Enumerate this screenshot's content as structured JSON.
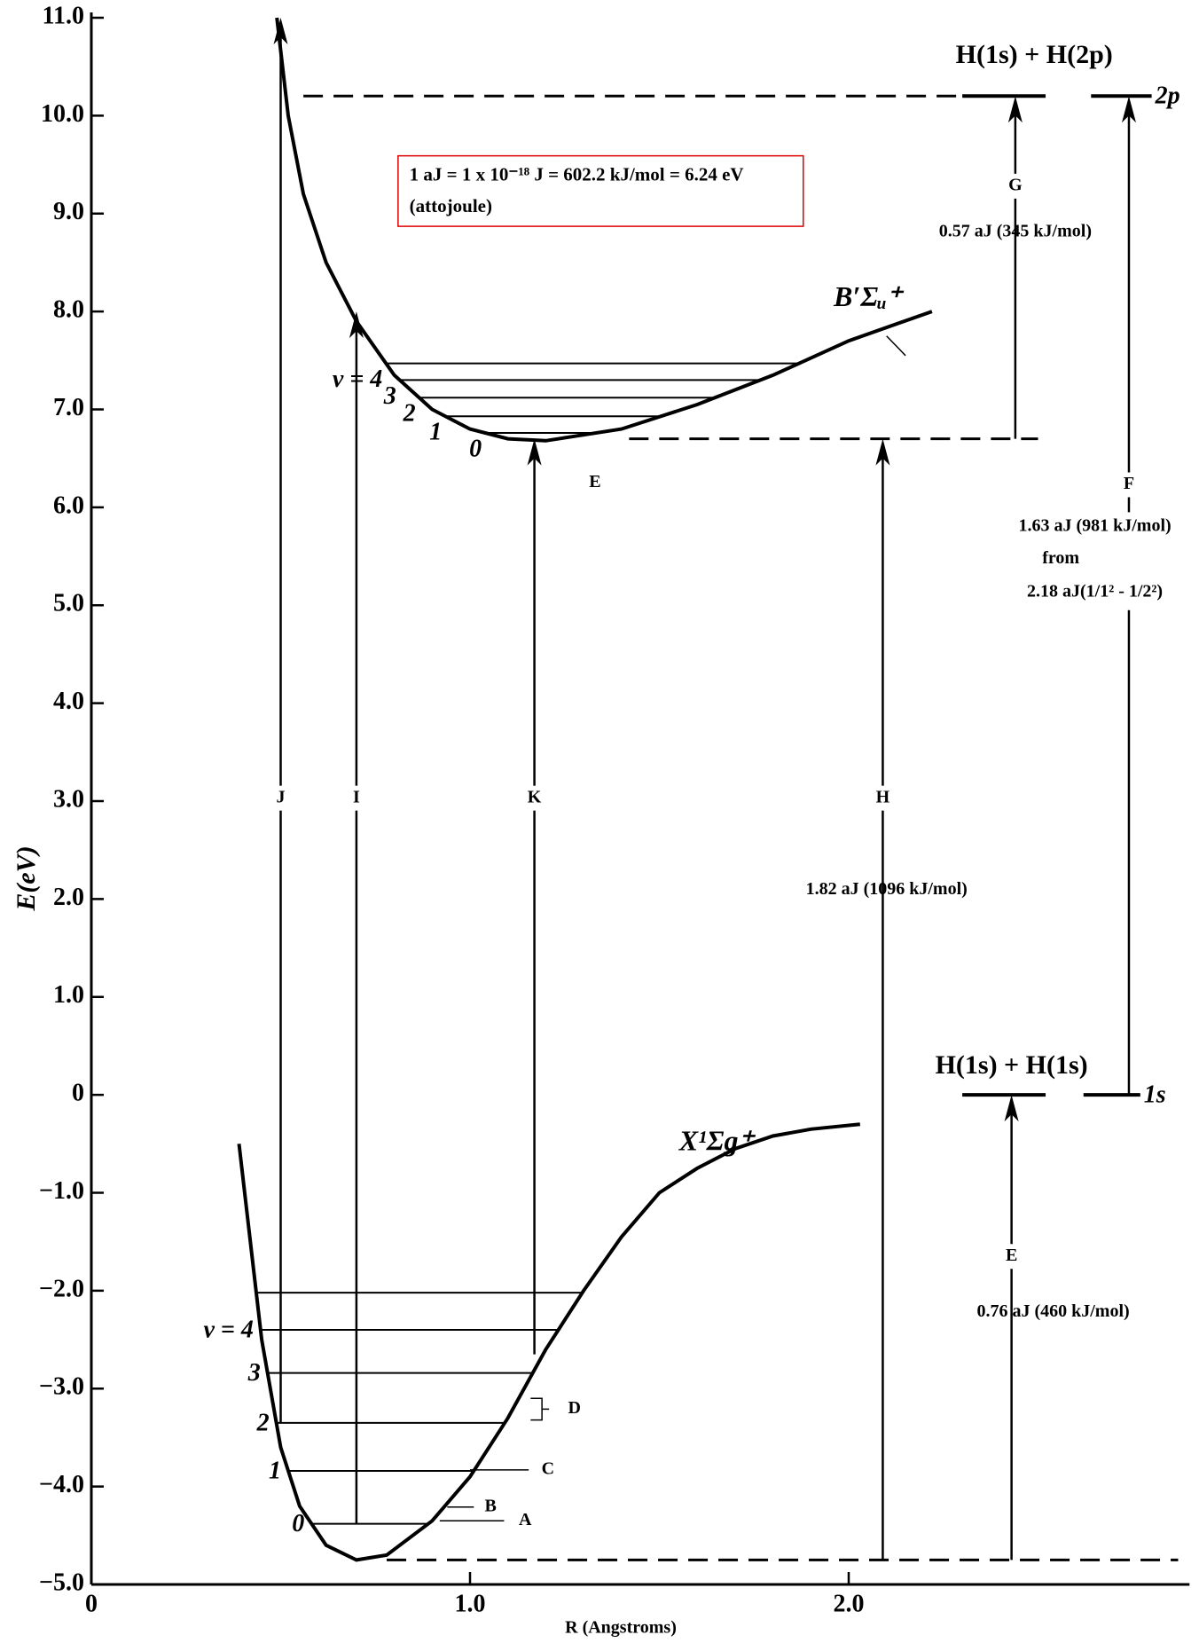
{
  "chart_data": {
    "type": "line",
    "xlabel": "R (Angstroms)",
    "ylabel": "E(eV)",
    "xlim": [
      0,
      2.9
    ],
    "ylim": [
      -5,
      11
    ],
    "xticks": [
      0,
      {
        "value": 1,
        "label": "1.0"
      },
      {
        "value": 2,
        "label": "2.0"
      }
    ],
    "yticks": [
      {
        "value": 11,
        "label": "11.0"
      },
      {
        "value": 10,
        "label": "10.0"
      },
      {
        "value": 9,
        "label": "9.0"
      },
      {
        "value": 8,
        "label": "8.0"
      },
      {
        "value": 7,
        "label": "7.0"
      },
      {
        "value": 6,
        "label": "6.0"
      },
      {
        "value": 5,
        "label": "5.0"
      },
      {
        "value": 4,
        "label": "4.0"
      },
      {
        "value": 3,
        "label": "3.0"
      },
      {
        "value": 2,
        "label": "2.0"
      },
      {
        "value": 1,
        "label": "1.0"
      },
      0,
      {
        "value": -1,
        "label": "−1.0"
      },
      {
        "value": -2,
        "label": "−2.0"
      },
      {
        "value": -3,
        "label": "−3.0"
      },
      {
        "value": -4,
        "label": "−4.0"
      },
      {
        "value": -5,
        "label": "−5.0"
      }
    ],
    "series": [
      {
        "name": "X¹Σg⁺",
        "color": "#000000",
        "x": [
          0.39,
          0.45,
          0.5,
          0.55,
          0.62,
          0.7,
          0.78,
          0.9,
          1.0,
          1.1,
          1.2,
          1.3,
          1.4,
          1.5,
          1.6,
          1.7,
          1.8,
          1.9,
          2.03
        ],
        "values": [
          -0.5,
          -2.5,
          -3.6,
          -4.2,
          -4.6,
          -4.75,
          -4.7,
          -4.35,
          -3.9,
          -3.3,
          -2.6,
          -2.0,
          -1.45,
          -1.0,
          -0.75,
          -0.55,
          -0.42,
          -0.35,
          -0.3
        ],
        "levels": [
          -4.38,
          -3.84,
          -3.35,
          -2.84,
          -2.4,
          -2.02
        ],
        "level_labels": [
          "0",
          "1",
          "2",
          "3",
          "v = 4",
          null
        ]
      },
      {
        "name": "B′Σᵤ⁺",
        "color": "#000000",
        "x": [
          0.49,
          0.52,
          0.56,
          0.62,
          0.7,
          0.8,
          0.9,
          1.0,
          1.1,
          1.2,
          1.4,
          1.6,
          1.8,
          2.0,
          2.22
        ],
        "values": [
          11.0,
          10.0,
          9.2,
          8.5,
          7.9,
          7.35,
          7.0,
          6.8,
          6.7,
          6.68,
          6.8,
          7.05,
          7.35,
          7.7,
          8.0
        ],
        "levels": [
          6.76,
          6.93,
          7.12,
          7.3,
          7.47
        ],
        "level_labels": [
          "0",
          "1",
          "2",
          "3",
          "v = 4"
        ]
      }
    ],
    "arrows": [
      {
        "label": "J",
        "x": 0.5,
        "from": -3.35,
        "to": 11.0
      },
      {
        "label": "I",
        "x": 0.7,
        "from": -4.38,
        "to": 8.0
      },
      {
        "label": "K",
        "x": 1.17,
        "from": -2.65,
        "to": 6.7
      },
      {
        "label": "H",
        "x": 2.09,
        "from": -4.75,
        "to": 6.7
      },
      {
        "label": "G",
        "x": 2.44,
        "from": 6.7,
        "to": 10.2
      },
      {
        "label": "F",
        "x": 2.74,
        "from": 0,
        "to": 10.2
      },
      {
        "label": "E",
        "x": 2.43,
        "from": -4.75,
        "to": 0
      }
    ],
    "dashed_lines": [
      {
        "value": 10.2,
        "x": [
          0.56,
          2.3
        ]
      },
      {
        "value": 6.7,
        "x": [
          1.42,
          2.5
        ]
      },
      {
        "value": -4.75,
        "x": [
          0.78,
          2.87
        ]
      }
    ],
    "limits": [
      {
        "label": "H(1s) + H(2p)",
        "state": "2p",
        "value": 10.2
      },
      {
        "label": "H(1s) + H(1s)",
        "state": "1s",
        "value": 0
      }
    ],
    "notes": {
      "G": "0.57 aJ (345 kJ/mol)",
      "H": "1.82 aJ (1096 kJ/mol)",
      "F": [
        "1.63 aJ (981 kJ/mol)",
        "from",
        "2.18 aJ(1/1² - 1/2²)"
      ],
      "E": "0.76 aJ (460 kJ/mol)",
      "E_top": "E"
    },
    "box_lines": [
      "1 aJ = 1 x 10⁻¹⁸ J = 602.2 kJ/mol = 6.24 eV",
      "(attojoule)"
    ],
    "transition_labels": [
      "A",
      "B",
      "C",
      "D"
    ]
  }
}
